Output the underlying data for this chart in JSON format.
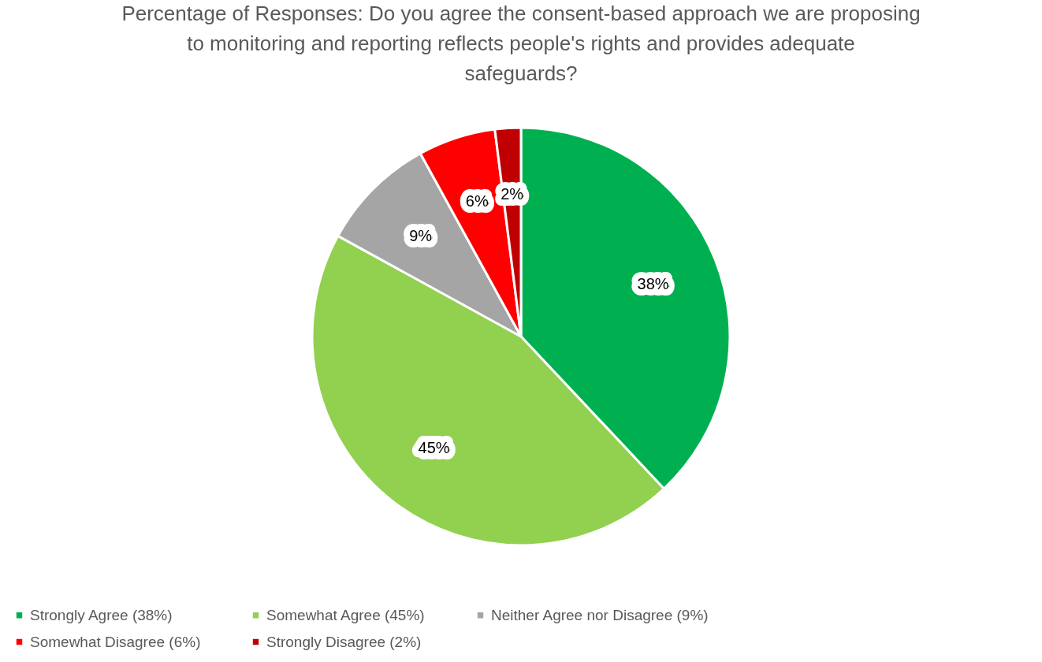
{
  "chart_data": {
    "type": "pie",
    "title": "Percentage of Responses: Do you agree the consent-based approach we are proposing to monitoring and reporting reflects people's rights and provides adequate safeguards?",
    "categories": [
      "Strongly Agree (38%)",
      "Somewhat Agree (45%)",
      "Neither Agree nor Disagree (9%)",
      "Somewhat Disagree (6%)",
      "Strongly Disagree (2%)"
    ],
    "values": [
      38,
      45,
      9,
      6,
      2
    ],
    "colors": [
      "#00b050",
      "#92d050",
      "#a5a5a5",
      "#ff0000",
      "#c00000"
    ],
    "value_labels": [
      "38%",
      "45%",
      "9%",
      "6%",
      "2%"
    ],
    "legend": "bottom"
  }
}
